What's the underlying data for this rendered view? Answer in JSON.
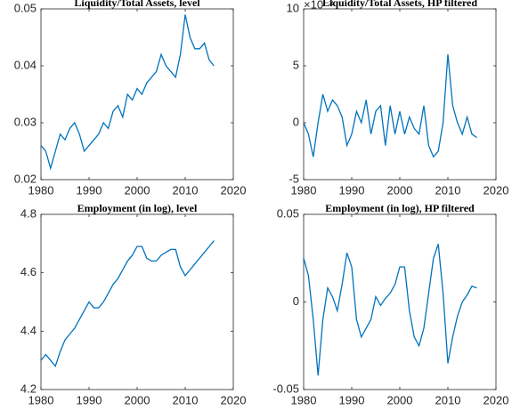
{
  "chart_data": [
    {
      "type": "line",
      "title": "Liquidity/Total Assets, level",
      "color": "#0072bd",
      "xlim": [
        1980,
        2020
      ],
      "xticks": [
        1980,
        1990,
        2000,
        2010,
        2020
      ],
      "ylim": [
        0.02,
        0.05
      ],
      "yticks": [
        0.02,
        0.03,
        0.04,
        0.05
      ],
      "x": [
        1980,
        1981,
        1982,
        1983,
        1984,
        1985,
        1986,
        1987,
        1988,
        1989,
        1990,
        1991,
        1992,
        1993,
        1994,
        1995,
        1996,
        1997,
        1998,
        1999,
        2000,
        2001,
        2002,
        2003,
        2004,
        2005,
        2006,
        2007,
        2008,
        2009,
        2010,
        2011,
        2012,
        2013,
        2014,
        2015,
        2016
      ],
      "values": [
        0.026,
        0.025,
        0.022,
        0.025,
        0.028,
        0.027,
        0.029,
        0.03,
        0.028,
        0.025,
        0.026,
        0.027,
        0.028,
        0.03,
        0.029,
        0.032,
        0.033,
        0.031,
        0.035,
        0.034,
        0.036,
        0.035,
        0.037,
        0.038,
        0.039,
        0.042,
        0.04,
        0.039,
        0.038,
        0.042,
        0.049,
        0.045,
        0.043,
        0.043,
        0.044,
        0.041,
        0.04
      ]
    },
    {
      "type": "line",
      "title": "Liquidity/Total Assets, HP filtered",
      "y_exponent": "×10⁻³",
      "color": "#0072bd",
      "xlim": [
        1980,
        2020
      ],
      "xticks": [
        1980,
        1990,
        2000,
        2010,
        2020
      ],
      "ylim": [
        -5,
        10
      ],
      "yticks": [
        -5,
        0,
        5,
        10
      ],
      "x": [
        1980,
        1981,
        1982,
        1983,
        1984,
        1985,
        1986,
        1987,
        1988,
        1989,
        1990,
        1991,
        1992,
        1993,
        1994,
        1995,
        1996,
        1997,
        1998,
        1999,
        2000,
        2001,
        2002,
        2003,
        2004,
        2005,
        2006,
        2007,
        2008,
        2009,
        2010,
        2011,
        2012,
        2013,
        2014,
        2015,
        2016
      ],
      "values": [
        0,
        -1,
        -3,
        0,
        2.5,
        1,
        2,
        1.5,
        0.5,
        -2,
        -1,
        1,
        0,
        2,
        -1,
        1,
        1.5,
        -2,
        1.5,
        -1,
        1,
        -1,
        0.5,
        -0.5,
        -1,
        1.5,
        -2,
        -3,
        -2.5,
        0,
        6,
        1.5,
        0,
        -1,
        0.5,
        -1,
        -1.3
      ]
    },
    {
      "type": "line",
      "title": "Employment (in log), level",
      "color": "#0072bd",
      "xlim": [
        1980,
        2020
      ],
      "xticks": [
        1980,
        1990,
        2000,
        2010,
        2020
      ],
      "ylim": [
        4.2,
        4.8
      ],
      "yticks": [
        4.2,
        4.4,
        4.6,
        4.8
      ],
      "x": [
        1980,
        1981,
        1982,
        1983,
        1984,
        1985,
        1986,
        1987,
        1988,
        1989,
        1990,
        1991,
        1992,
        1993,
        1994,
        1995,
        1996,
        1997,
        1998,
        1999,
        2000,
        2001,
        2002,
        2003,
        2004,
        2005,
        2006,
        2007,
        2008,
        2009,
        2010,
        2011,
        2012,
        2013,
        2014,
        2015,
        2016
      ],
      "values": [
        4.3,
        4.32,
        4.3,
        4.28,
        4.33,
        4.37,
        4.39,
        4.41,
        4.44,
        4.47,
        4.5,
        4.48,
        4.48,
        4.5,
        4.53,
        4.56,
        4.58,
        4.61,
        4.64,
        4.66,
        4.69,
        4.69,
        4.65,
        4.64,
        4.64,
        4.66,
        4.67,
        4.68,
        4.68,
        4.62,
        4.59,
        4.61,
        4.63,
        4.65,
        4.67,
        4.69,
        4.71
      ]
    },
    {
      "type": "line",
      "title": "Employment (in log), HP filtered",
      "color": "#0072bd",
      "xlim": [
        1980,
        2020
      ],
      "xticks": [
        1980,
        1990,
        2000,
        2010,
        2020
      ],
      "ylim": [
        -0.05,
        0.05
      ],
      "yticks": [
        -0.05,
        0,
        0.05
      ],
      "x": [
        1980,
        1981,
        1982,
        1983,
        1984,
        1985,
        1986,
        1987,
        1988,
        1989,
        1990,
        1991,
        1992,
        1993,
        1994,
        1995,
        1996,
        1997,
        1998,
        1999,
        2000,
        2001,
        2002,
        2003,
        2004,
        2005,
        2006,
        2007,
        2008,
        2009,
        2010,
        2011,
        2012,
        2013,
        2014,
        2015,
        2016
      ],
      "values": [
        0.025,
        0.015,
        -0.01,
        -0.042,
        -0.01,
        0.008,
        0.003,
        -0.005,
        0.01,
        0.028,
        0.02,
        -0.01,
        -0.02,
        -0.015,
        -0.01,
        0.003,
        -0.002,
        0.002,
        0.005,
        0.01,
        0.02,
        0.02,
        -0.005,
        -0.02,
        -0.025,
        -0.015,
        0.005,
        0.025,
        0.033,
        0.005,
        -0.035,
        -0.02,
        -0.008,
        0,
        0.004,
        0.009,
        0.008
      ]
    }
  ]
}
